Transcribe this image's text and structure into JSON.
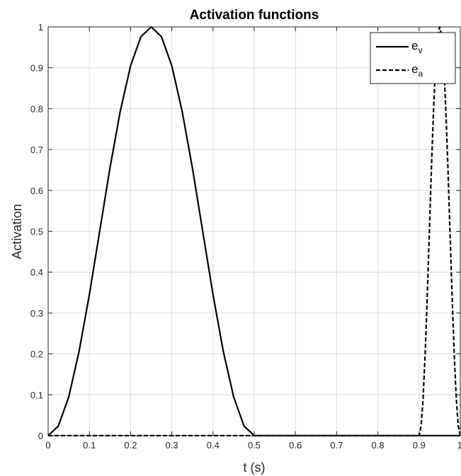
{
  "chart_data": {
    "type": "line",
    "title": "Activation functions",
    "xlabel": "t (s)",
    "ylabel": "Activation",
    "xlim": [
      0,
      1
    ],
    "ylim": [
      0,
      1
    ],
    "xticks": [
      0,
      0.1,
      0.2,
      0.3,
      0.4,
      0.5,
      0.6,
      0.7,
      0.8,
      0.9,
      1
    ],
    "xtick_labels": [
      "0",
      "0.1",
      "0.2",
      "0.3",
      "0.4",
      "0.5",
      "0.6",
      "0.7",
      "0.8",
      "0.9",
      "1"
    ],
    "yticks": [
      0,
      0.1,
      0.2,
      0.3,
      0.4,
      0.5,
      0.6,
      0.7,
      0.8,
      0.9,
      1
    ],
    "ytick_labels": [
      "0",
      "0.1",
      "0.2",
      "0.3",
      "0.4",
      "0.5",
      "0.6",
      "0.7",
      "0.8",
      "0.9",
      "1"
    ],
    "grid": true,
    "legend_position": "top-right",
    "series": [
      {
        "name": "e",
        "subscript": "v",
        "style": "solid",
        "color": "#000000",
        "x": [
          0,
          0.025,
          0.05,
          0.075,
          0.1,
          0.125,
          0.15,
          0.175,
          0.2,
          0.225,
          0.25,
          0.275,
          0.3,
          0.325,
          0.35,
          0.375,
          0.4,
          0.425,
          0.45,
          0.475,
          0.5,
          0.6,
          0.7,
          0.8,
          0.9,
          1
        ],
        "y": [
          0,
          0.024,
          0.095,
          0.206,
          0.345,
          0.5,
          0.655,
          0.794,
          0.905,
          0.976,
          1,
          0.976,
          0.905,
          0.794,
          0.655,
          0.5,
          0.345,
          0.206,
          0.095,
          0.024,
          0,
          0,
          0,
          0,
          0,
          0
        ]
      },
      {
        "name": "e",
        "subscript": "a",
        "style": "dashed",
        "color": "#000000",
        "x": [
          0,
          0.1,
          0.2,
          0.3,
          0.4,
          0.5,
          0.6,
          0.7,
          0.8,
          0.9,
          0.905,
          0.91,
          0.915,
          0.92,
          0.925,
          0.93,
          0.935,
          0.94,
          0.945,
          0.95,
          0.955,
          0.96,
          0.965,
          0.97,
          0.975,
          0.98,
          0.985,
          0.99,
          0.995,
          1
        ],
        "y": [
          0,
          0,
          0,
          0,
          0,
          0,
          0,
          0,
          0,
          0,
          0.024,
          0.095,
          0.206,
          0.345,
          0.5,
          0.655,
          0.794,
          0.905,
          0.976,
          1,
          0.976,
          0.905,
          0.794,
          0.655,
          0.5,
          0.345,
          0.206,
          0.095,
          0.024,
          0
        ]
      }
    ]
  }
}
